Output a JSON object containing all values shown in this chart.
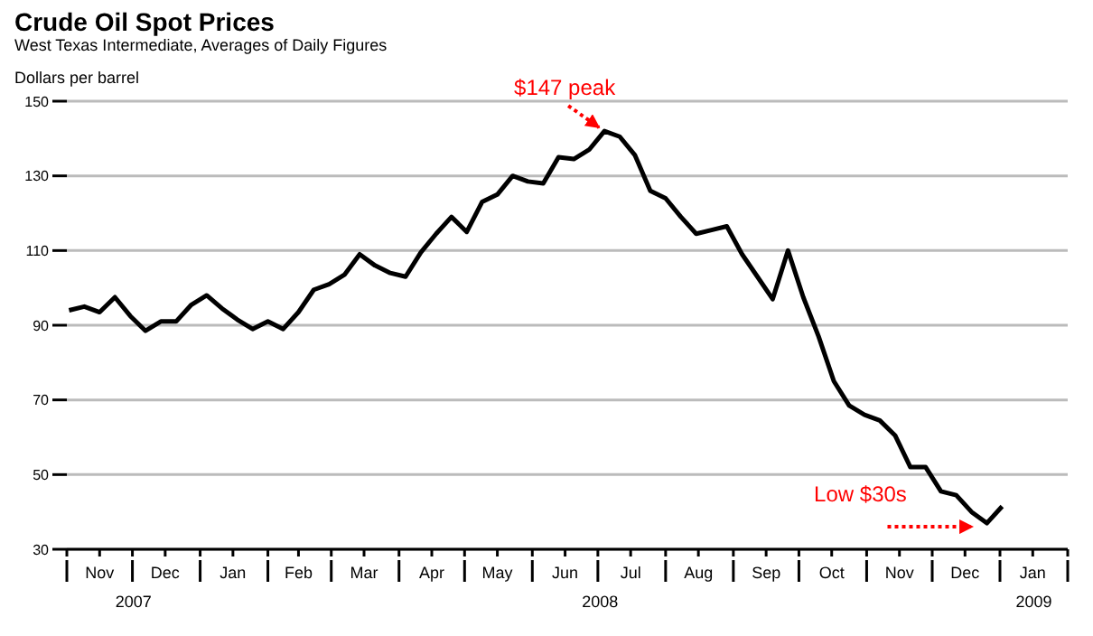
{
  "chart_data": {
    "type": "line",
    "title": "Crude Oil Spot Prices",
    "subtitle": "West Texas Intermediate, Averages of Daily Figures",
    "ylabel": "Dollars per barrel",
    "x": [
      "2007-11-02",
      "2007-11-09",
      "2007-11-16",
      "2007-11-23",
      "2007-11-30",
      "2007-12-07",
      "2007-12-14",
      "2007-12-21",
      "2007-12-28",
      "2008-01-04",
      "2008-01-11",
      "2008-01-18",
      "2008-01-25",
      "2008-02-01",
      "2008-02-08",
      "2008-02-15",
      "2008-02-22",
      "2008-02-29",
      "2008-03-07",
      "2008-03-14",
      "2008-03-21",
      "2008-03-28",
      "2008-04-04",
      "2008-04-11",
      "2008-04-18",
      "2008-04-25",
      "2008-05-02",
      "2008-05-09",
      "2008-05-16",
      "2008-05-23",
      "2008-05-30",
      "2008-06-06",
      "2008-06-13",
      "2008-06-20",
      "2008-06-27",
      "2008-07-04",
      "2008-07-11",
      "2008-07-18",
      "2008-07-25",
      "2008-08-01",
      "2008-08-08",
      "2008-08-15",
      "2008-08-22",
      "2008-08-29",
      "2008-09-05",
      "2008-09-12",
      "2008-09-19",
      "2008-09-26",
      "2008-10-03",
      "2008-10-10",
      "2008-10-17",
      "2008-10-24",
      "2008-10-31",
      "2008-11-07",
      "2008-11-14",
      "2008-11-21",
      "2008-11-28",
      "2008-12-05",
      "2008-12-12",
      "2008-12-19",
      "2008-12-26",
      "2009-01-02"
    ],
    "series": [
      {
        "color": "#000000",
        "values": [
          94,
          95,
          93.5,
          97.5,
          92.5,
          88.5,
          91,
          91,
          95.5,
          98,
          94.5,
          91.5,
          89,
          91,
          89,
          93.5,
          99.5,
          101,
          103.5,
          109,
          106,
          104,
          103,
          109.5,
          114.5,
          119,
          115,
          123,
          125,
          130,
          128.5,
          128,
          135,
          134.5,
          137,
          142,
          140.5,
          135.5,
          126,
          124,
          119,
          114.5,
          115.5,
          116.5,
          109,
          103,
          97,
          110,
          97.5,
          87,
          75,
          68.5,
          66,
          64.5,
          60.5,
          52,
          52,
          45.5,
          44.5,
          40,
          37,
          41.5
        ]
      }
    ],
    "xlim": [
      "2007-11-01",
      "2009-02-01"
    ],
    "xticks": [
      {
        "value": "2007-11-01",
        "label": null
      },
      {
        "value": "2007-11-16",
        "label": "Nov"
      },
      {
        "value": "2007-12-01",
        "label": null
      },
      {
        "value": "2007-12-16",
        "label": "Dec"
      },
      {
        "value": "2008-01-01",
        "label": null
      },
      {
        "value": "2008-01-16",
        "label": "Jan"
      },
      {
        "value": "2008-02-01",
        "label": null
      },
      {
        "value": "2008-02-15",
        "label": "Feb"
      },
      {
        "value": "2008-03-01",
        "label": null
      },
      {
        "value": "2008-03-16",
        "label": "Mar"
      },
      {
        "value": "2008-04-01",
        "label": null
      },
      {
        "value": "2008-04-16",
        "label": "Apr"
      },
      {
        "value": "2008-05-01",
        "label": null
      },
      {
        "value": "2008-05-16",
        "label": "May"
      },
      {
        "value": "2008-06-01",
        "label": null
      },
      {
        "value": "2008-06-16",
        "label": "Jun"
      },
      {
        "value": "2008-07-01",
        "label": null
      },
      {
        "value": "2008-07-16",
        "label": "Jul"
      },
      {
        "value": "2008-08-01",
        "label": null
      },
      {
        "value": "2008-08-16",
        "label": "Aug"
      },
      {
        "value": "2008-09-01",
        "label": null
      },
      {
        "value": "2008-09-16",
        "label": "Sep"
      },
      {
        "value": "2008-10-01",
        "label": null
      },
      {
        "value": "2008-10-16",
        "label": "Oct"
      },
      {
        "value": "2008-11-01",
        "label": null
      },
      {
        "value": "2008-11-16",
        "label": "Nov"
      },
      {
        "value": "2008-12-01",
        "label": null
      },
      {
        "value": "2008-12-16",
        "label": "Dec"
      },
      {
        "value": "2009-01-01",
        "label": null
      },
      {
        "value": "2009-01-16",
        "label": "Jan"
      },
      {
        "value": "2009-02-01",
        "label": null
      }
    ],
    "ylim": [
      30,
      150
    ],
    "yticks": [
      30,
      50,
      70,
      90,
      110,
      130,
      150
    ],
    "grid": "y",
    "marker": "none",
    "line_style": "solid",
    "annotations": [
      "2007",
      "2008",
      "2009",
      {
        "text": "$147 peak",
        "x": "2008-07-04",
        "y": 142
      },
      {
        "text": "Low $30s",
        "x": "2008-12-26",
        "y": 37
      }
    ]
  }
}
